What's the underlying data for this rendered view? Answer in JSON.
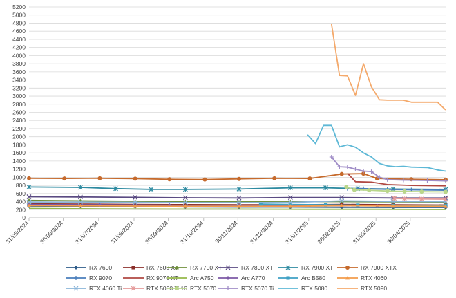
{
  "chart_data": {
    "type": "line",
    "title": "",
    "xlabel": "",
    "ylabel": "",
    "ylim": [
      0,
      5200
    ],
    "y_ticks": [
      0,
      200,
      400,
      600,
      800,
      1000,
      1200,
      1400,
      1600,
      1800,
      2000,
      2200,
      2400,
      2600,
      2800,
      3000,
      3200,
      3400,
      3600,
      3800,
      4000,
      4200,
      4400,
      4600,
      4800,
      5000,
      5200
    ],
    "x_range": [
      "2024-05-31",
      "2025-05-31"
    ],
    "x_ticks": [
      {
        "date": "2024-05-31",
        "label": "31/05/2024"
      },
      {
        "date": "2024-06-30",
        "label": "30/06/2024"
      },
      {
        "date": "2024-07-31",
        "label": "31/07/2024"
      },
      {
        "date": "2024-08-31",
        "label": "31/08/2024"
      },
      {
        "date": "2024-09-30",
        "label": "30/09/2024"
      },
      {
        "date": "2024-10-31",
        "label": "31/10/2024"
      },
      {
        "date": "2024-11-30",
        "label": "30/11/2024"
      },
      {
        "date": "2024-12-31",
        "label": "31/12/2024"
      },
      {
        "date": "2025-01-31",
        "label": "31/01/2025"
      },
      {
        "date": "2025-02-28",
        "label": "28/02/2025"
      },
      {
        "date": "2025-03-31",
        "label": "31/03/2025"
      },
      {
        "date": "2025-04-30",
        "label": "30/04/2025"
      }
    ],
    "grid": "horizontal",
    "legend_position": "bottom",
    "series": [
      {
        "name": "RX 7600",
        "color": "#2e5c8a",
        "marker": "diamond",
        "points": [
          [
            "2024-05-31",
            290
          ],
          [
            "2024-07-15",
            285
          ],
          [
            "2024-09-01",
            275
          ],
          [
            "2024-10-15",
            270
          ],
          [
            "2024-12-01",
            265
          ],
          [
            "2025-01-15",
            265
          ],
          [
            "2025-03-01",
            260
          ],
          [
            "2025-04-15",
            255
          ],
          [
            "2025-05-31",
            255
          ]
        ]
      },
      {
        "name": "RX 7600 XT",
        "color": "#8b2f2b",
        "marker": "square",
        "points": [
          [
            "2024-05-31",
            345
          ],
          [
            "2024-07-15",
            340
          ],
          [
            "2024-09-01",
            330
          ],
          [
            "2024-10-15",
            325
          ],
          [
            "2024-12-01",
            320
          ],
          [
            "2025-01-15",
            320
          ],
          [
            "2025-03-01",
            330
          ],
          [
            "2025-04-15",
            320
          ],
          [
            "2025-05-31",
            315
          ]
        ]
      },
      {
        "name": "RX 7700 XT",
        "color": "#6e8f3a",
        "marker": "triangle",
        "points": [
          [
            "2024-05-31",
            430
          ],
          [
            "2024-07-15",
            420
          ],
          [
            "2024-09-01",
            410
          ],
          [
            "2024-10-15",
            400
          ],
          [
            "2024-12-01",
            395
          ],
          [
            "2025-01-15",
            400
          ],
          [
            "2025-03-01",
            400
          ],
          [
            "2025-04-15",
            395
          ],
          [
            "2025-05-31",
            390
          ]
        ]
      },
      {
        "name": "RX 7800 XT",
        "color": "#5a4a82",
        "marker": "x",
        "points": [
          [
            "2024-05-31",
            520
          ],
          [
            "2024-07-15",
            515
          ],
          [
            "2024-09-01",
            505
          ],
          [
            "2024-10-15",
            495
          ],
          [
            "2024-12-01",
            490
          ],
          [
            "2025-01-15",
            500
          ],
          [
            "2025-03-01",
            500
          ],
          [
            "2025-04-15",
            490
          ],
          [
            "2025-05-31",
            490
          ]
        ]
      },
      {
        "name": "RX 7900 XT",
        "color": "#2d8aa0",
        "marker": "star",
        "points": [
          [
            "2024-05-31",
            760
          ],
          [
            "2024-07-15",
            750
          ],
          [
            "2024-08-15",
            720
          ],
          [
            "2024-09-15",
            700
          ],
          [
            "2024-10-15",
            700
          ],
          [
            "2024-12-01",
            710
          ],
          [
            "2025-01-15",
            740
          ],
          [
            "2025-02-15",
            740
          ],
          [
            "2025-03-15",
            720
          ],
          [
            "2025-04-15",
            710
          ],
          [
            "2025-05-31",
            700
          ]
        ]
      },
      {
        "name": "RX 7900 XTX",
        "color": "#c66a2c",
        "marker": "circle",
        "points": [
          [
            "2024-05-31",
            975
          ],
          [
            "2024-07-01",
            970
          ],
          [
            "2024-08-01",
            975
          ],
          [
            "2024-09-01",
            965
          ],
          [
            "2024-10-01",
            950
          ],
          [
            "2024-11-01",
            945
          ],
          [
            "2024-12-01",
            960
          ],
          [
            "2025-01-01",
            975
          ],
          [
            "2025-02-01",
            970
          ],
          [
            "2025-03-01",
            1080
          ],
          [
            "2025-03-20",
            1090
          ],
          [
            "2025-04-01",
            970
          ],
          [
            "2025-05-01",
            950
          ],
          [
            "2025-05-31",
            940
          ]
        ]
      },
      {
        "name": "RX 9070",
        "color": "#4a7ebb",
        "marker": "plus",
        "points": [
          [
            "2025-03-06",
            720
          ],
          [
            "2025-03-20",
            720
          ],
          [
            "2025-04-10",
            700
          ],
          [
            "2025-05-01",
            690
          ],
          [
            "2025-05-31",
            680
          ]
        ]
      },
      {
        "name": "RX 9070 XT",
        "color": "#b04842",
        "marker": "none",
        "points": [
          [
            "2025-03-06",
            1100
          ],
          [
            "2025-03-13",
            890
          ],
          [
            "2025-03-27",
            880
          ],
          [
            "2025-04-10",
            820
          ],
          [
            "2025-05-01",
            800
          ],
          [
            "2025-05-31",
            790
          ]
        ]
      },
      {
        "name": "Arc A750",
        "color": "#95b84a",
        "marker": "none",
        "points": [
          [
            "2024-05-31",
            230
          ],
          [
            "2024-08-01",
            220
          ],
          [
            "2024-10-01",
            215
          ],
          [
            "2024-12-01",
            215
          ],
          [
            "2025-02-01",
            210
          ],
          [
            "2025-04-01",
            210
          ],
          [
            "2025-05-31",
            205
          ]
        ]
      },
      {
        "name": "Arc A770",
        "color": "#7d5aa6",
        "marker": "diamond",
        "points": [
          [
            "2024-05-31",
            330
          ],
          [
            "2024-08-01",
            320
          ],
          [
            "2024-10-01",
            310
          ],
          [
            "2024-12-01",
            300
          ],
          [
            "2025-02-01",
            300
          ],
          [
            "2025-04-01",
            295
          ],
          [
            "2025-05-31",
            290
          ]
        ]
      },
      {
        "name": "Arc B580",
        "color": "#3ea0c4",
        "marker": "square",
        "points": [
          [
            "2024-12-20",
            340
          ],
          [
            "2025-01-15",
            330
          ],
          [
            "2025-02-15",
            320
          ],
          [
            "2025-03-15",
            310
          ],
          [
            "2025-04-15",
            300
          ],
          [
            "2025-05-31",
            300
          ]
        ]
      },
      {
        "name": "RTX 4060",
        "color": "#f39c4b",
        "marker": "triangle",
        "points": [
          [
            "2024-05-31",
            300
          ],
          [
            "2024-07-15",
            295
          ],
          [
            "2024-09-01",
            290
          ],
          [
            "2024-10-15",
            285
          ],
          [
            "2024-12-01",
            285
          ],
          [
            "2025-01-15",
            285
          ],
          [
            "2025-03-01",
            300
          ],
          [
            "2025-04-15",
            290
          ],
          [
            "2025-05-31",
            285
          ]
        ]
      },
      {
        "name": "RTX 4060 Ti",
        "color": "#8ab4d8",
        "marker": "x",
        "points": [
          [
            "2024-05-31",
            390
          ],
          [
            "2024-07-15",
            385
          ],
          [
            "2024-09-01",
            380
          ],
          [
            "2024-10-15",
            375
          ],
          [
            "2024-12-01",
            375
          ],
          [
            "2025-01-15",
            380
          ],
          [
            "2025-03-01",
            420
          ],
          [
            "2025-04-15",
            405
          ],
          [
            "2025-05-31",
            400
          ]
        ]
      },
      {
        "name": "RTX 5060 Ti 16",
        "color": "#e59a9a",
        "marker": "star",
        "points": [
          [
            "2025-04-16",
            480
          ],
          [
            "2025-04-25",
            470
          ],
          [
            "2025-05-10",
            465
          ],
          [
            "2025-05-31",
            460
          ]
        ]
      },
      {
        "name": "RTX 5070",
        "color": "#b9d68a",
        "marker": "circle",
        "points": [
          [
            "2025-03-05",
            760
          ],
          [
            "2025-03-12",
            690
          ],
          [
            "2025-03-25",
            680
          ],
          [
            "2025-04-10",
            660
          ],
          [
            "2025-04-25",
            650
          ],
          [
            "2025-05-10",
            645
          ],
          [
            "2025-05-31",
            640
          ]
        ]
      },
      {
        "name": "RTX 5070 Ti",
        "color": "#a08dc7",
        "marker": "plus",
        "points": [
          [
            "2025-02-20",
            1500
          ],
          [
            "2025-02-27",
            1260
          ],
          [
            "2025-03-06",
            1250
          ],
          [
            "2025-03-13",
            1200
          ],
          [
            "2025-03-20",
            1150
          ],
          [
            "2025-03-27",
            1140
          ],
          [
            "2025-04-03",
            1000
          ],
          [
            "2025-04-10",
            940
          ],
          [
            "2025-04-24",
            930
          ],
          [
            "2025-05-15",
            920
          ],
          [
            "2025-05-31",
            910
          ]
        ]
      },
      {
        "name": "RTX 5080",
        "color": "#5db8d6",
        "marker": "none",
        "points": [
          [
            "2025-01-30",
            2050
          ],
          [
            "2025-02-06",
            1830
          ],
          [
            "2025-02-13",
            2280
          ],
          [
            "2025-02-20",
            2280
          ],
          [
            "2025-02-27",
            1750
          ],
          [
            "2025-03-06",
            1800
          ],
          [
            "2025-03-13",
            1740
          ],
          [
            "2025-03-20",
            1600
          ],
          [
            "2025-03-27",
            1500
          ],
          [
            "2025-04-03",
            1340
          ],
          [
            "2025-04-10",
            1280
          ],
          [
            "2025-04-17",
            1260
          ],
          [
            "2025-04-24",
            1270
          ],
          [
            "2025-05-01",
            1250
          ],
          [
            "2025-05-15",
            1240
          ],
          [
            "2025-05-24",
            1180
          ],
          [
            "2025-05-31",
            1150
          ]
        ]
      },
      {
        "name": "RTX 5090",
        "color": "#f4a96b",
        "marker": "none",
        "points": [
          [
            "2025-02-20",
            4780
          ],
          [
            "2025-02-27",
            3510
          ],
          [
            "2025-03-06",
            3500
          ],
          [
            "2025-03-13",
            3020
          ],
          [
            "2025-03-20",
            3800
          ],
          [
            "2025-03-27",
            3230
          ],
          [
            "2025-04-03",
            2910
          ],
          [
            "2025-04-10",
            2900
          ],
          [
            "2025-04-24",
            2900
          ],
          [
            "2025-05-01",
            2850
          ],
          [
            "2025-05-15",
            2850
          ],
          [
            "2025-05-24",
            2850
          ],
          [
            "2025-05-31",
            2660
          ]
        ]
      }
    ]
  }
}
